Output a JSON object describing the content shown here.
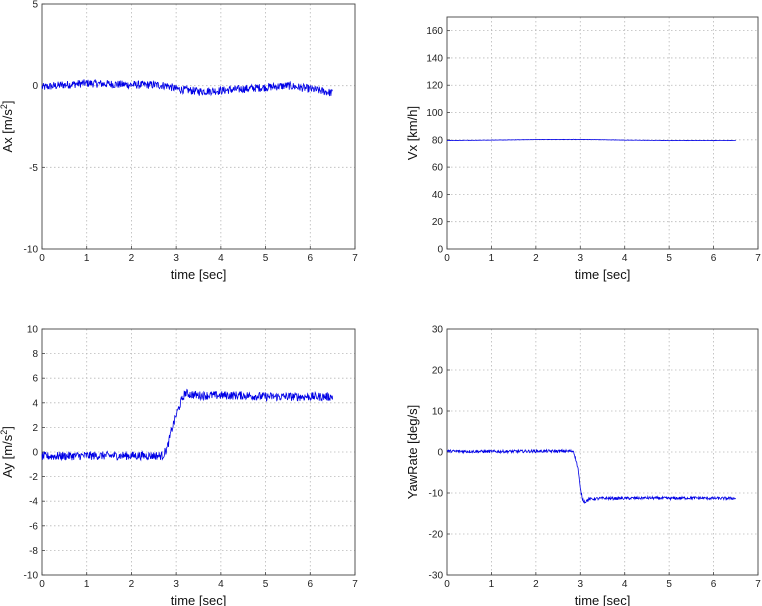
{
  "colors": {
    "line": "#0000e6",
    "grid": "#b8b8b8",
    "axis": "#444444"
  },
  "chart_data": [
    {
      "type": "line",
      "title": "",
      "xlabel": "time [sec]",
      "ylabel_base": "Ax [m/s",
      "ylabel_sup": "2",
      "ylabel_tail": "]",
      "xlim": [
        0,
        7
      ],
      "ylim": [
        -10,
        5
      ],
      "xticks": [
        0,
        1,
        2,
        3,
        4,
        5,
        6,
        7
      ],
      "yticks": [
        -10,
        -5,
        0,
        5
      ],
      "grid": true,
      "series": [
        {
          "x": [
            0,
            0.5,
            1,
            1.5,
            2,
            2.5,
            2.8,
            3.0,
            3.5,
            4,
            4.5,
            5,
            5.5,
            6,
            6.5
          ],
          "y": [
            -0.1,
            0.05,
            0.15,
            0.1,
            0.05,
            0.05,
            0.0,
            -0.2,
            -0.35,
            -0.3,
            -0.2,
            -0.1,
            0.0,
            -0.2,
            -0.45
          ],
          "noise": 0.25
        }
      ]
    },
    {
      "type": "line",
      "title": "",
      "xlabel": "time [sec]",
      "ylabel_base": "Vx [km/h]",
      "ylabel_sup": "",
      "ylabel_tail": "",
      "xlim": [
        0,
        7
      ],
      "ylim": [
        0,
        170
      ],
      "xticks": [
        0,
        1,
        2,
        3,
        4,
        5,
        6,
        7
      ],
      "yticks": [
        0,
        20,
        40,
        60,
        80,
        100,
        120,
        140,
        160
      ],
      "grid": true,
      "series": [
        {
          "x": [
            0,
            1,
            2,
            3,
            4,
            5,
            6,
            6.5
          ],
          "y": [
            79.5,
            79.8,
            80.2,
            80.3,
            79.8,
            79.5,
            79.5,
            79.5
          ],
          "noise": 0.1
        }
      ]
    },
    {
      "type": "line",
      "title": "",
      "xlabel": "time [sec]",
      "ylabel_base": "Ay [m/s",
      "ylabel_sup": "2",
      "ylabel_tail": "]",
      "xlim": [
        0,
        7
      ],
      "ylim": [
        -10,
        10
      ],
      "xticks": [
        0,
        1,
        2,
        3,
        4,
        5,
        6,
        7
      ],
      "yticks": [
        -10,
        -8,
        -6,
        -4,
        -2,
        0,
        2,
        4,
        6,
        8,
        10
      ],
      "grid": true,
      "series": [
        {
          "x": [
            0,
            1,
            2,
            2.7,
            2.8,
            2.9,
            3.0,
            3.1,
            3.2,
            3.3,
            3.5,
            4,
            4.5,
            5,
            5.5,
            6,
            6.5
          ],
          "y": [
            -0.35,
            -0.3,
            -0.3,
            -0.3,
            0.3,
            1.8,
            3.0,
            4.0,
            4.8,
            4.7,
            4.6,
            4.6,
            4.6,
            4.5,
            4.5,
            4.5,
            4.5
          ],
          "noise": 0.35
        }
      ]
    },
    {
      "type": "line",
      "title": "",
      "xlabel": "time [sec]",
      "ylabel_base": "YawRate [deg/s]",
      "ylabel_sup": "",
      "ylabel_tail": "",
      "xlim": [
        0,
        7
      ],
      "ylim": [
        -30,
        30
      ],
      "xticks": [
        0,
        1,
        2,
        3,
        4,
        5,
        6,
        7
      ],
      "yticks": [
        -30,
        -20,
        -10,
        0,
        10,
        20,
        30
      ],
      "grid": true,
      "series": [
        {
          "x": [
            0,
            1,
            2,
            2.85,
            2.95,
            3.0,
            3.05,
            3.1,
            3.2,
            3.5,
            4,
            4.5,
            5,
            5.5,
            6,
            6.5
          ],
          "y": [
            0.2,
            0.1,
            0.2,
            0.2,
            -4.0,
            -9.0,
            -11.5,
            -12.2,
            -11.5,
            -11.3,
            -11.3,
            -11.2,
            -11.3,
            -11.2,
            -11.3,
            -11.3
          ],
          "noise": 0.35
        }
      ]
    }
  ]
}
